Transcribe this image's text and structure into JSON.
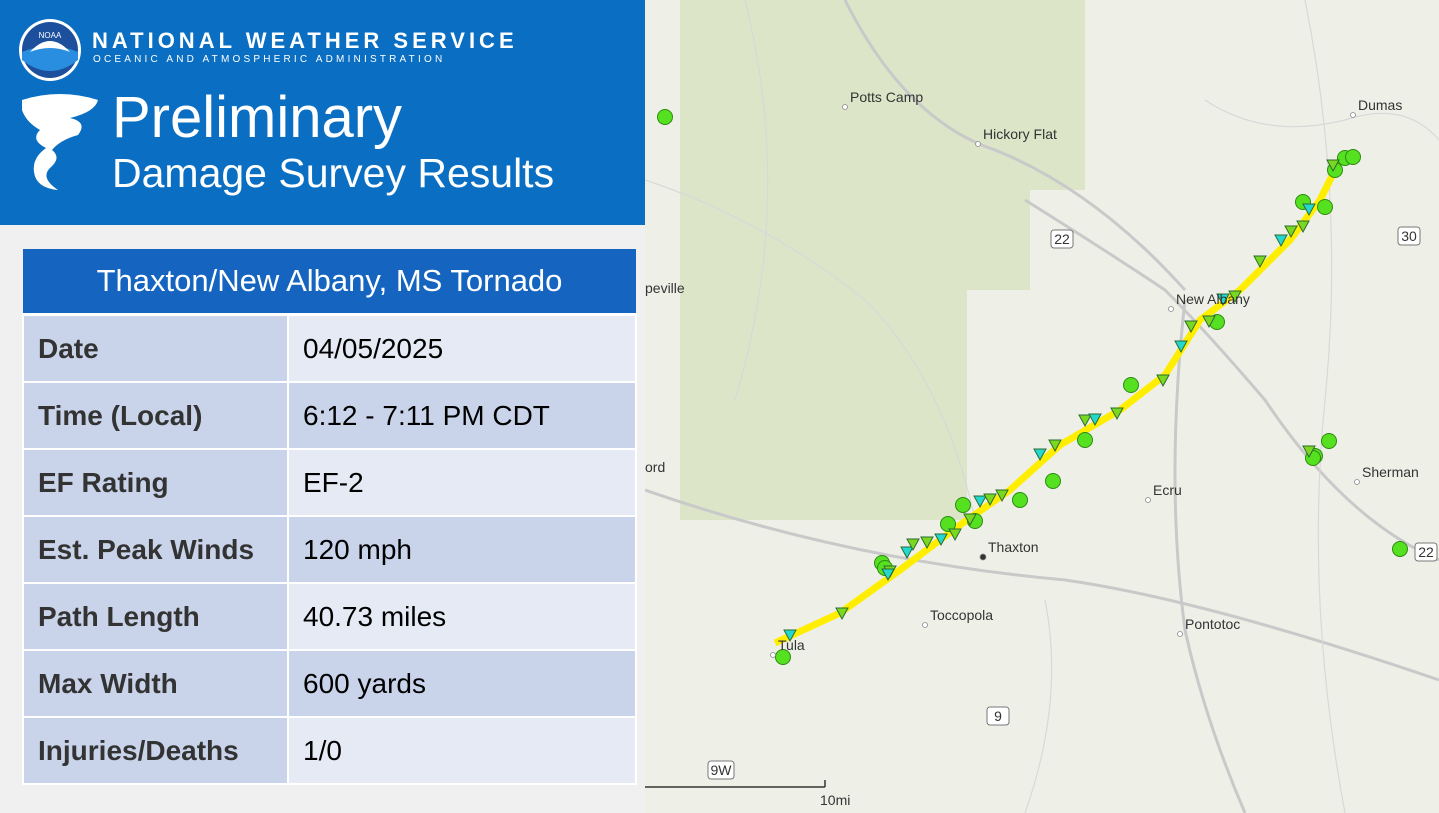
{
  "header": {
    "agency": "NATIONAL WEATHER SERVICE",
    "subagency": "OCEANIC AND ATMOSPHERIC ADMINISTRATION",
    "logo": "NOAA",
    "title": "Preliminary",
    "subtitle": "Damage Survey Results"
  },
  "table": {
    "title": "Thaxton/New Albany, MS Tornado",
    "rows": [
      [
        "Date",
        "04/05/2025"
      ],
      [
        "Time (Local)",
        "6:12 - 7:11 PM CDT"
      ],
      [
        "EF Rating",
        "EF-2"
      ],
      [
        "Est. Peak Winds",
        "120 mph"
      ],
      [
        "Path Length",
        "40.73 miles"
      ],
      [
        "Max Width",
        "600 yards"
      ],
      [
        "Injuries/Deaths",
        "1/0"
      ]
    ]
  },
  "map": {
    "places": [
      "Potts Camp",
      "Hickory Flat",
      "Dumas",
      "New Albany",
      "Ecru",
      "Thaxton",
      "Toccopola",
      "Pontotoc",
      "Tula",
      "Sherman",
      "ord",
      "peville"
    ],
    "shields": [
      "22",
      "30",
      "22",
      "9",
      "9W"
    ],
    "scale": "10mi"
  }
}
